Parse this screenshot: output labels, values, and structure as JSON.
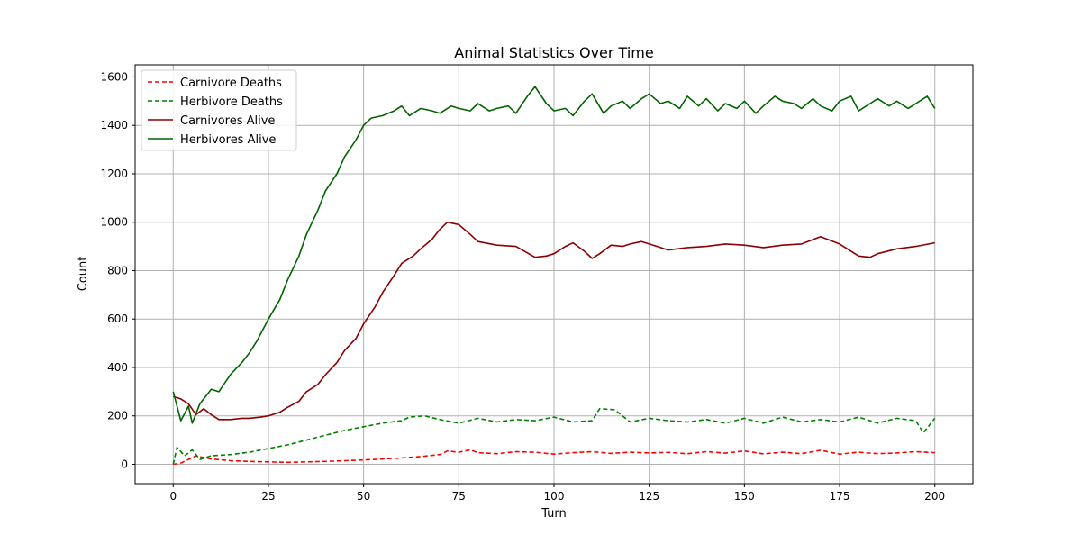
{
  "chart_data": {
    "type": "line",
    "title": "Animal Statistics Over Time",
    "xlabel": "Turn",
    "ylabel": "Count",
    "xlim": [
      -10,
      210
    ],
    "ylim": [
      -80,
      1650
    ],
    "xticks": [
      0,
      25,
      50,
      75,
      100,
      125,
      150,
      175,
      200
    ],
    "yticks": [
      0,
      200,
      400,
      600,
      800,
      1000,
      1200,
      1400,
      1600
    ],
    "grid": true,
    "legend_position": "top-left",
    "series": [
      {
        "name": "Carnivore Deaths",
        "color": "#ff0000",
        "style": "dashed",
        "x": [
          0,
          2,
          4,
          6,
          8,
          10,
          15,
          20,
          25,
          30,
          35,
          40,
          45,
          50,
          55,
          60,
          65,
          70,
          72,
          75,
          78,
          80,
          85,
          90,
          95,
          100,
          105,
          110,
          115,
          120,
          125,
          130,
          135,
          140,
          145,
          150,
          155,
          160,
          165,
          170,
          175,
          180,
          185,
          190,
          195,
          200
        ],
        "values": [
          0,
          5,
          20,
          35,
          28,
          22,
          15,
          12,
          10,
          8,
          10,
          12,
          15,
          18,
          22,
          26,
          32,
          40,
          55,
          50,
          60,
          48,
          44,
          52,
          50,
          42,
          48,
          52,
          45,
          50,
          47,
          49,
          44,
          52,
          46,
          55,
          43,
          50,
          44,
          58,
          42,
          50,
          44,
          47,
          52,
          48
        ]
      },
      {
        "name": "Herbivore Deaths",
        "color": "#008000",
        "style": "dashed",
        "x": [
          0,
          1,
          3,
          5,
          7,
          10,
          15,
          20,
          25,
          30,
          35,
          40,
          45,
          50,
          55,
          60,
          62,
          66,
          70,
          75,
          80,
          85,
          90,
          95,
          100,
          105,
          110,
          112,
          116,
          120,
          125,
          130,
          135,
          140,
          145,
          150,
          155,
          160,
          165,
          170,
          175,
          180,
          185,
          190,
          195,
          197,
          200
        ],
        "values": [
          0,
          70,
          35,
          60,
          20,
          35,
          40,
          50,
          65,
          80,
          100,
          120,
          140,
          155,
          170,
          180,
          195,
          200,
          185,
          170,
          190,
          175,
          185,
          180,
          195,
          175,
          180,
          230,
          225,
          175,
          190,
          180,
          175,
          185,
          170,
          190,
          170,
          195,
          175,
          185,
          175,
          195,
          170,
          190,
          180,
          130,
          190
        ]
      },
      {
        "name": "Carnivores Alive",
        "color": "#8b0000",
        "style": "solid",
        "x": [
          0,
          2,
          4,
          6,
          8,
          10,
          12,
          15,
          18,
          20,
          23,
          25,
          28,
          30,
          33,
          35,
          38,
          40,
          43,
          45,
          48,
          50,
          53,
          55,
          58,
          60,
          63,
          65,
          68,
          70,
          72,
          75,
          78,
          80,
          85,
          90,
          95,
          98,
          100,
          103,
          105,
          108,
          110,
          112,
          115,
          118,
          120,
          123,
          125,
          128,
          130,
          135,
          140,
          145,
          150,
          155,
          160,
          165,
          170,
          175,
          180,
          183,
          185,
          190,
          195,
          200
        ],
        "values": [
          280,
          270,
          250,
          205,
          230,
          205,
          185,
          185,
          190,
          190,
          195,
          200,
          215,
          235,
          260,
          300,
          330,
          370,
          420,
          470,
          520,
          580,
          650,
          710,
          780,
          830,
          860,
          890,
          930,
          970,
          1000,
          990,
          950,
          920,
          905,
          900,
          855,
          860,
          870,
          900,
          915,
          880,
          850,
          870,
          905,
          900,
          910,
          920,
          910,
          895,
          885,
          895,
          900,
          910,
          905,
          895,
          905,
          910,
          940,
          910,
          860,
          855,
          870,
          890,
          900,
          915
        ]
      },
      {
        "name": "Herbivores Alive",
        "color": "#006400",
        "style": "solid",
        "x": [
          0,
          2,
          4,
          5,
          7,
          10,
          12,
          15,
          18,
          20,
          22,
          25,
          28,
          30,
          33,
          35,
          38,
          40,
          43,
          45,
          48,
          50,
          52,
          55,
          58,
          60,
          62,
          65,
          68,
          70,
          73,
          75,
          78,
          80,
          83,
          85,
          88,
          90,
          93,
          95,
          98,
          100,
          103,
          105,
          108,
          110,
          113,
          115,
          118,
          120,
          123,
          125,
          128,
          130,
          133,
          135,
          138,
          140,
          143,
          145,
          148,
          150,
          153,
          155,
          158,
          160,
          163,
          165,
          168,
          170,
          173,
          175,
          178,
          180,
          183,
          185,
          188,
          190,
          193,
          195,
          198,
          200
        ],
        "values": [
          300,
          180,
          240,
          170,
          250,
          310,
          300,
          370,
          420,
          460,
          510,
          600,
          680,
          760,
          860,
          950,
          1050,
          1130,
          1200,
          1270,
          1340,
          1400,
          1430,
          1440,
          1460,
          1480,
          1440,
          1470,
          1460,
          1450,
          1480,
          1470,
          1460,
          1490,
          1460,
          1470,
          1480,
          1450,
          1520,
          1560,
          1490,
          1460,
          1470,
          1440,
          1500,
          1530,
          1450,
          1480,
          1500,
          1470,
          1510,
          1530,
          1490,
          1500,
          1470,
          1520,
          1480,
          1510,
          1460,
          1490,
          1470,
          1500,
          1450,
          1480,
          1520,
          1500,
          1490,
          1470,
          1510,
          1480,
          1460,
          1500,
          1520,
          1460,
          1490,
          1510,
          1480,
          1500,
          1470,
          1490,
          1520,
          1470
        ]
      }
    ]
  }
}
